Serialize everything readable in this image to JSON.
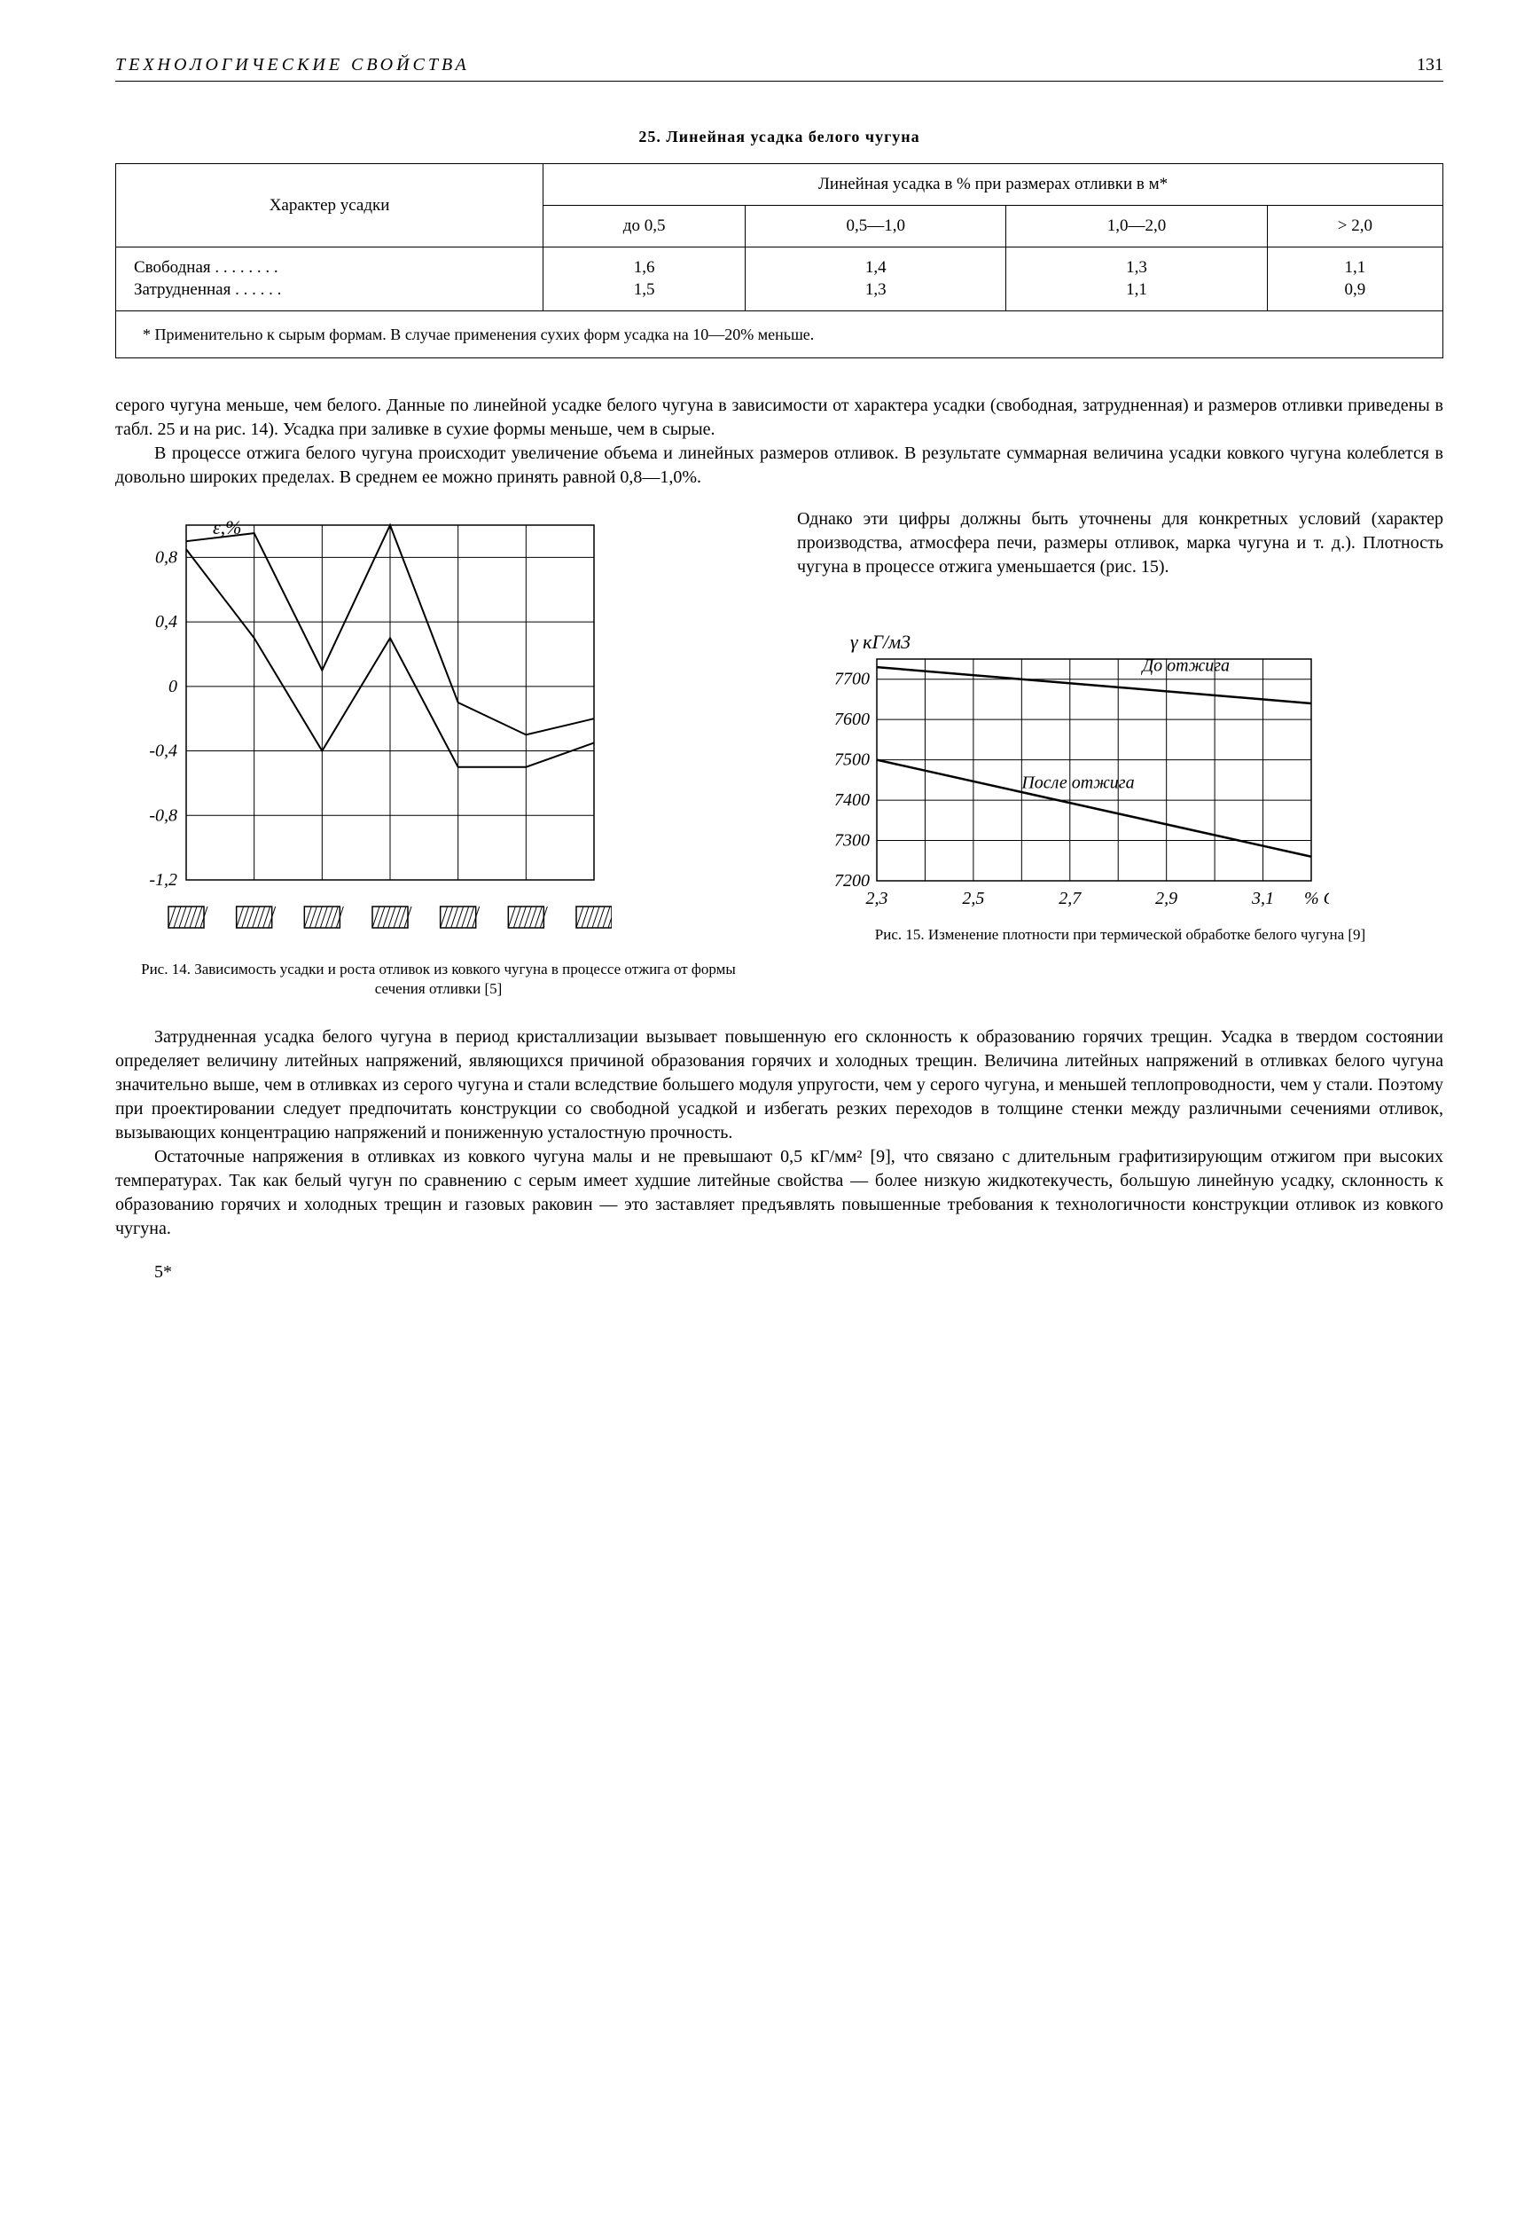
{
  "header": {
    "running_title": "ТЕХНОЛОГИЧЕСКИЕ СВОЙСТВА",
    "page_number": "131"
  },
  "table25": {
    "caption": "25. Линейная усадка белого чугуна",
    "row_header": "Характер усадки",
    "super_header": "Линейная усадка в % при размерах отливки в м*",
    "cols": [
      "до 0,5",
      "0,5—1,0",
      "1,0—2,0",
      "> 2,0"
    ],
    "rows": [
      {
        "label": "Свободная . . . . . . . .",
        "vals": [
          "1,6",
          "1,4",
          "1,3",
          "1,1"
        ]
      },
      {
        "label": "Затрудненная . . . . . .",
        "vals": [
          "1,5",
          "1,3",
          "1,1",
          "0,9"
        ]
      }
    ],
    "footnote": "* Применительно к сырым формам. В случае применения сухих форм усадка на 10—20% меньше."
  },
  "para1": "серого чугуна меньше, чем белого. Данные по линейной усадке белого чугуна в зависимости от характера усадки (свободная, затрудненная) и размеров отливки приведены в табл. 25 и на рис. 14). Усадка при заливке в сухие формы меньше, чем в сырые.",
  "para2": "В процессе отжига белого чугуна происходит увеличение объема и линейных размеров отливок. В результате суммарная величина усадки ковкого чугуна колеблется в довольно широких пределах. В среднем ее можно принять равной 0,8—1,0%.",
  "wrap_para": "Однако эти цифры должны быть уточнены для конкретных условий (характер производства, атмосфера печи, размеры отливок, марка чугуна и т. д.). Плотность чугуна в процессе отжига уменьшается (рис. 15).",
  "fig14": {
    "type": "line",
    "y_label": "ε,%",
    "y_ticks": [
      "0,8",
      "0,4",
      "0",
      "-0,4",
      "-0,8",
      "-1,2"
    ],
    "ylim": [
      -1.2,
      1.0
    ],
    "x_categories": 7,
    "series": [
      {
        "points": [
          0.9,
          0.95,
          0.1,
          1.0,
          -0.1,
          -0.3,
          -0.2
        ]
      },
      {
        "points": [
          0.85,
          0.3,
          -0.4,
          0.3,
          -0.5,
          -0.5,
          -0.35
        ]
      }
    ],
    "stroke": "#000000",
    "grid": "#000000",
    "caption": "Рис. 14. Зависимость усадки и роста отливок из ковкого чугуна в процессе отжига от формы сечения отливки [5]"
  },
  "fig15": {
    "type": "line",
    "y_label": "γ кГ/м3",
    "x_label_suffix": "% С",
    "y_ticks": [
      "7700",
      "7600",
      "7500",
      "7400",
      "7300",
      "7200"
    ],
    "ylim": [
      7200,
      7750
    ],
    "x_ticks": [
      "2,3",
      "2,5",
      "2,7",
      "2,9",
      "3,1"
    ],
    "xlim": [
      2.3,
      3.2
    ],
    "series": [
      {
        "label": "До отжига",
        "label_pos": {
          "x": 2.85,
          "y": 7720
        },
        "points": [
          [
            2.3,
            7730
          ],
          [
            3.2,
            7640
          ]
        ]
      },
      {
        "label": "После отжига",
        "label_pos": {
          "x": 2.6,
          "y": 7430
        },
        "points": [
          [
            2.3,
            7500
          ],
          [
            3.2,
            7260
          ]
        ]
      }
    ],
    "stroke": "#000000",
    "caption": "Рис. 15. Изменение плотности при термической обработке белого чугуна [9]"
  },
  "para3": "Затрудненная усадка белого чугуна в период кристаллизации вызывает повышенную его склонность к образованию горячих трещин. Усадка в твердом состоянии определяет величину литейных напряжений, являющихся причиной образования горячих и холодных трещин. Величина литейных напряжений в отливках белого чугуна значительно выше, чем в отливках из серого чугуна и стали вследствие большего модуля упругости, чем у серого чугуна, и меньшей теплопроводности, чем у стали. Поэтому при проектировании следует предпочитать конструкции со свободной усадкой и избегать резких переходов в толщине стенки между различными сечениями отливок, вызывающих концентрацию напряжений и пониженную усталостную прочность.",
  "para4": "Остаточные напряжения в отливках из ковкого чугуна малы и не превышают 0,5 кГ/мм² [9], что связано с длительным графитизирующим отжигом при высоких температурах. Так как белый чугун по сравнению с серым имеет худшие литейные свойства — более низкую жидкотекучесть, большую линейную усадку, склонность к образованию горячих и холодных трещин и газовых раковин — это заставляет предъявлять повышенные требования к технологичности конструкции отливок из ковкого чугуна.",
  "footer_mark": "5*"
}
